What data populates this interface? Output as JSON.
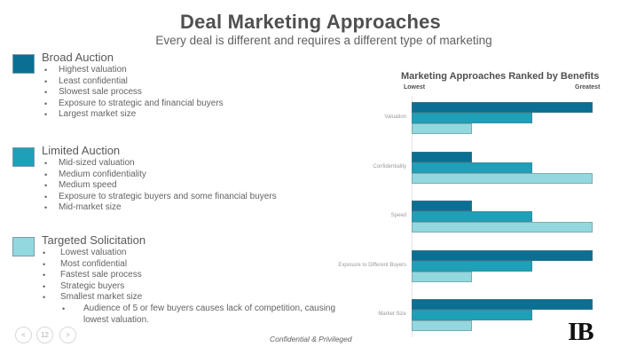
{
  "slide": {
    "title": "Deal Marketing Approaches",
    "subtitle": "Every deal is different and requires a different type of marketing",
    "footer": "Confidential & Privileged",
    "page_number": "12",
    "logo": "IB",
    "nav": {
      "prev_icon": "<",
      "next_icon": ">"
    }
  },
  "colors": {
    "broad": "#0b6f93",
    "limited": "#1ea0b8",
    "targeted": "#93d8df"
  },
  "sections": [
    {
      "title": "Broad Auction",
      "bullets": [
        "Highest valuation",
        "Least confidential",
        "Slowest sale process",
        "Exposure to strategic and financial buyers",
        "Largest market size"
      ]
    },
    {
      "title": "Limited Auction",
      "bullets": [
        "Mid-sized valuation",
        "Medium confidentiality",
        "Medium speed",
        "Exposure to strategic buyers and some financial buyers",
        "Mid-market size"
      ]
    },
    {
      "title": "Targeted Solicitation",
      "bullets": [
        "Lowest valuation",
        "Most confidential",
        "Fastest sale process",
        "Strategic buyers",
        "Smallest market size"
      ],
      "sub_bullet": "Audience of 5 or few buyers causes lack of competition, causing",
      "sub_bullet_cont": "lowest valuation."
    }
  ],
  "chart_data": {
    "type": "bar",
    "orientation": "horizontal",
    "title": "Marketing Approaches Ranked by Benefits",
    "axis_low_label": "Lowest",
    "axis_high_label": "Greatest",
    "categories": [
      "Valuation",
      "Confidentiality",
      "Speed",
      "Exposure to Different Buyers",
      "Market Size"
    ],
    "series": [
      {
        "name": "Broad Auction",
        "color": "#0b6f93",
        "values": [
          3,
          1,
          1,
          3,
          3
        ]
      },
      {
        "name": "Limited Auction",
        "color": "#1ea0b8",
        "values": [
          2,
          2,
          2,
          2,
          2
        ]
      },
      {
        "name": "Targeted Solicitation",
        "color": "#93d8df",
        "values": [
          1,
          3,
          3,
          1,
          1
        ]
      }
    ],
    "xlim": [
      0,
      3
    ],
    "grid": false,
    "legend": "none"
  }
}
